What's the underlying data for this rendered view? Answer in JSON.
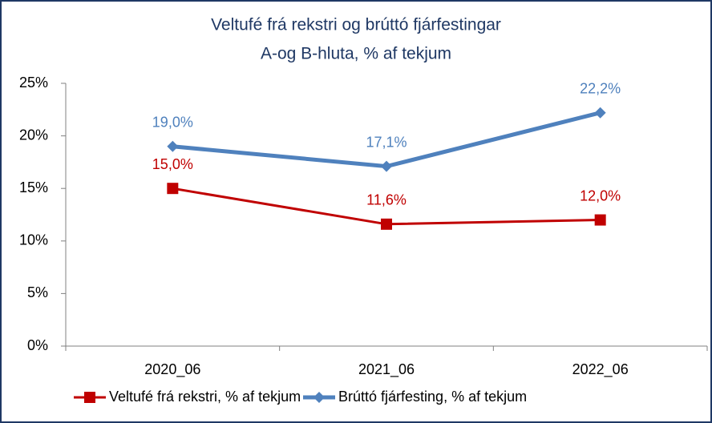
{
  "chart_data": {
    "type": "line",
    "title": "Veltufé frá rekstri og brúttó fjárfestingar",
    "subtitle": "A-og B-hluta, % af tekjum",
    "categories": [
      "2020_06",
      "2021_06",
      "2022_06"
    ],
    "series": [
      {
        "name": "Veltufé frá rekstri, % af tekjum",
        "color": "#c00000",
        "marker": "square",
        "values": [
          15.0,
          11.6,
          12.0
        ],
        "value_labels": [
          "15,0%",
          "11,6%",
          "12,0%"
        ]
      },
      {
        "name": "Brúttó fjárfesting, % af tekjum",
        "color": "#4f81bd",
        "marker": "diamond",
        "values": [
          19.0,
          17.1,
          22.2
        ],
        "value_labels": [
          "19,0%",
          "17,1%",
          "22,2%"
        ]
      }
    ],
    "ylim": [
      0,
      25
    ],
    "yticks": [
      {
        "value": 0,
        "label": "0%"
      },
      {
        "value": 5,
        "label": "5%"
      },
      {
        "value": 10,
        "label": "10%"
      },
      {
        "value": 15,
        "label": "15%"
      },
      {
        "value": 20,
        "label": "20%"
      },
      {
        "value": 25,
        "label": "25%"
      }
    ],
    "grid": false,
    "legend": "bottom"
  }
}
